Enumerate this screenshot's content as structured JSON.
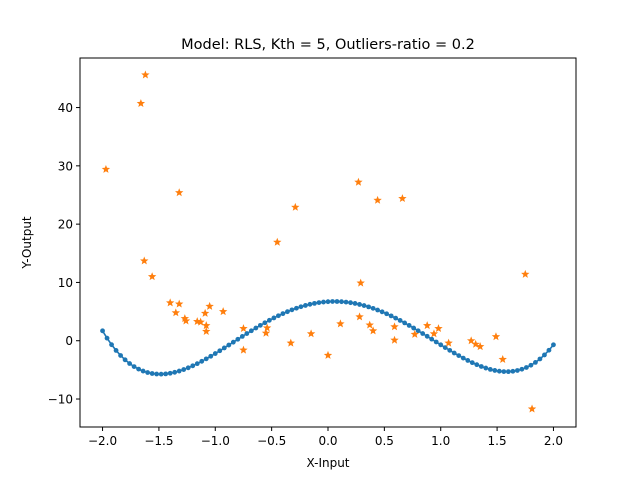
{
  "chart_data": {
    "type": "scatter",
    "title": "Model: RLS, Kth = 5, Outliers-ratio = 0.2",
    "xlabel": "X-Input",
    "ylabel": "Y-Output",
    "xlim": [
      -2.2,
      2.2
    ],
    "ylim": [
      -14.8,
      48.5
    ],
    "xticks": [
      -2.0,
      -1.5,
      -1.0,
      -0.5,
      0.0,
      0.5,
      1.0,
      1.5,
      2.0
    ],
    "xtick_labels": [
      "−2.0",
      "−1.5",
      "−1.0",
      "−0.5",
      "0.0",
      "0.5",
      "1.0",
      "1.5",
      "2.0"
    ],
    "yticks": [
      -10,
      0,
      10,
      20,
      30,
      40
    ],
    "ytick_labels": [
      "−10",
      "0",
      "10",
      "20",
      "30",
      "40"
    ],
    "grid": false,
    "legend": "none",
    "colors": {
      "fit": "#1f77b4",
      "observed": "#ff7f0e"
    },
    "series": [
      {
        "marker": "dot-line",
        "polynomial_coefficients_high_to_low": [
          2.2,
          -0.45,
          -10.35,
          1.2,
          6.7
        ],
        "x_start": -2.0,
        "x_end": 2.0,
        "n_points": 101
      },
      {
        "marker": "star",
        "points": [
          [
            -1.62,
            45.6
          ],
          [
            -1.66,
            40.7
          ],
          [
            -1.97,
            29.4
          ],
          [
            -1.32,
            25.4
          ],
          [
            -0.29,
            22.9
          ],
          [
            0.27,
            27.2
          ],
          [
            0.44,
            24.1
          ],
          [
            0.66,
            24.4
          ],
          [
            -0.45,
            16.9
          ],
          [
            -1.63,
            13.7
          ],
          [
            -1.56,
            11.0
          ],
          [
            -1.4,
            6.5
          ],
          [
            -1.32,
            6.3
          ],
          [
            -1.35,
            4.8
          ],
          [
            -1.27,
            3.8
          ],
          [
            -1.26,
            3.4
          ],
          [
            -1.16,
            3.3
          ],
          [
            -1.13,
            3.2
          ],
          [
            -1.09,
            4.7
          ],
          [
            -1.05,
            5.9
          ],
          [
            -0.93,
            5.0
          ],
          [
            -1.08,
            2.6
          ],
          [
            -1.08,
            1.6
          ],
          [
            -0.75,
            2.1
          ],
          [
            -0.75,
            -1.6
          ],
          [
            -0.54,
            2.2
          ],
          [
            -0.55,
            1.3
          ],
          [
            -0.33,
            -0.4
          ],
          [
            -0.15,
            1.2
          ],
          [
            0.0,
            -2.5
          ],
          [
            0.11,
            2.9
          ],
          [
            0.29,
            9.9
          ],
          [
            0.28,
            4.1
          ],
          [
            0.37,
            2.7
          ],
          [
            0.4,
            1.7
          ],
          [
            0.59,
            2.4
          ],
          [
            0.59,
            0.1
          ],
          [
            0.77,
            1.1
          ],
          [
            0.88,
            2.6
          ],
          [
            0.94,
            1.2
          ],
          [
            0.98,
            2.1
          ],
          [
            1.07,
            -0.4
          ],
          [
            1.27,
            0.0
          ],
          [
            1.31,
            -0.6
          ],
          [
            1.35,
            -1.0
          ],
          [
            1.49,
            0.7
          ],
          [
            1.55,
            -3.2
          ],
          [
            1.75,
            11.4
          ],
          [
            1.81,
            -11.7
          ]
        ]
      }
    ]
  }
}
